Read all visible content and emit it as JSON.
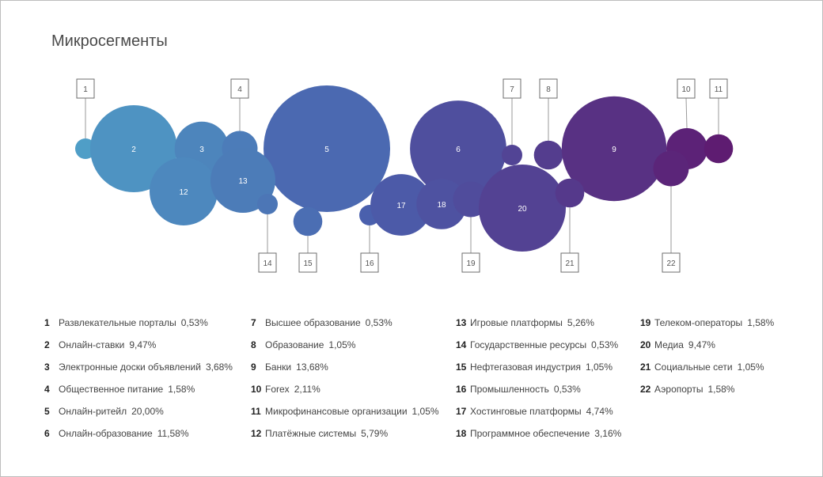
{
  "title": "Микросегменты",
  "colors": {
    "start": "#4f9fc7",
    "mid": "#4a60ad",
    "end": "#5e1b70",
    "connector": "#9a9a9a",
    "box_border": "#6d6d6d"
  },
  "chart_data": {
    "type": "bubble",
    "title": "Микросегменты",
    "unit": "%",
    "series": [
      {
        "id": "1",
        "label": "Развлекательные порталы",
        "value": 0.53,
        "display": "0,53%"
      },
      {
        "id": "2",
        "label": "Онлайн-ставки",
        "value": 9.47,
        "display": "9,47%"
      },
      {
        "id": "3",
        "label": "Электронные доски объявлений",
        "value": 3.68,
        "display": "3,68%"
      },
      {
        "id": "4",
        "label": "Общественное питание",
        "value": 1.58,
        "display": "1,58%"
      },
      {
        "id": "5",
        "label": "Онлайн-ритейл",
        "value": 20.0,
        "display": "20,00%"
      },
      {
        "id": "6",
        "label": "Онлайн-образование",
        "value": 11.58,
        "display": "11,58%"
      },
      {
        "id": "7",
        "label": "Высшее образование",
        "value": 0.53,
        "display": "0,53%"
      },
      {
        "id": "8",
        "label": "Образование",
        "value": 1.05,
        "display": "1,05%"
      },
      {
        "id": "9",
        "label": "Банки",
        "value": 13.68,
        "display": "13,68%"
      },
      {
        "id": "10",
        "label": "Forex",
        "value": 2.11,
        "display": "2,11%"
      },
      {
        "id": "11",
        "label": "Микрофинансовые организации",
        "value": 1.05,
        "display": "1,05%"
      },
      {
        "id": "12",
        "label": "Платёжные системы",
        "value": 5.79,
        "display": "5,79%"
      },
      {
        "id": "13",
        "label": "Игровые платформы",
        "value": 5.26,
        "display": "5,26%"
      },
      {
        "id": "14",
        "label": "Государственные ресурсы",
        "value": 0.53,
        "display": "0,53%"
      },
      {
        "id": "15",
        "label": "Нефтегазовая индустрия",
        "value": 1.05,
        "display": "1,05%"
      },
      {
        "id": "16",
        "label": "Промышленность",
        "value": 0.53,
        "display": "0,53%"
      },
      {
        "id": "17",
        "label": "Хостинговые платформы",
        "value": 4.74,
        "display": "4,74%"
      },
      {
        "id": "18",
        "label": "Программное обеспечение",
        "value": 3.16,
        "display": "3,16%"
      },
      {
        "id": "19",
        "label": "Телеком-операторы",
        "value": 1.58,
        "display": "1,58%"
      },
      {
        "id": "20",
        "label": "Медиа",
        "value": 9.47,
        "display": "9,47%"
      },
      {
        "id": "21",
        "label": "Социальные сети",
        "value": 1.05,
        "display": "1,05%"
      },
      {
        "id": "22",
        "label": "Аэропорты",
        "value": 1.58,
        "display": "1,58%"
      }
    ]
  }
}
